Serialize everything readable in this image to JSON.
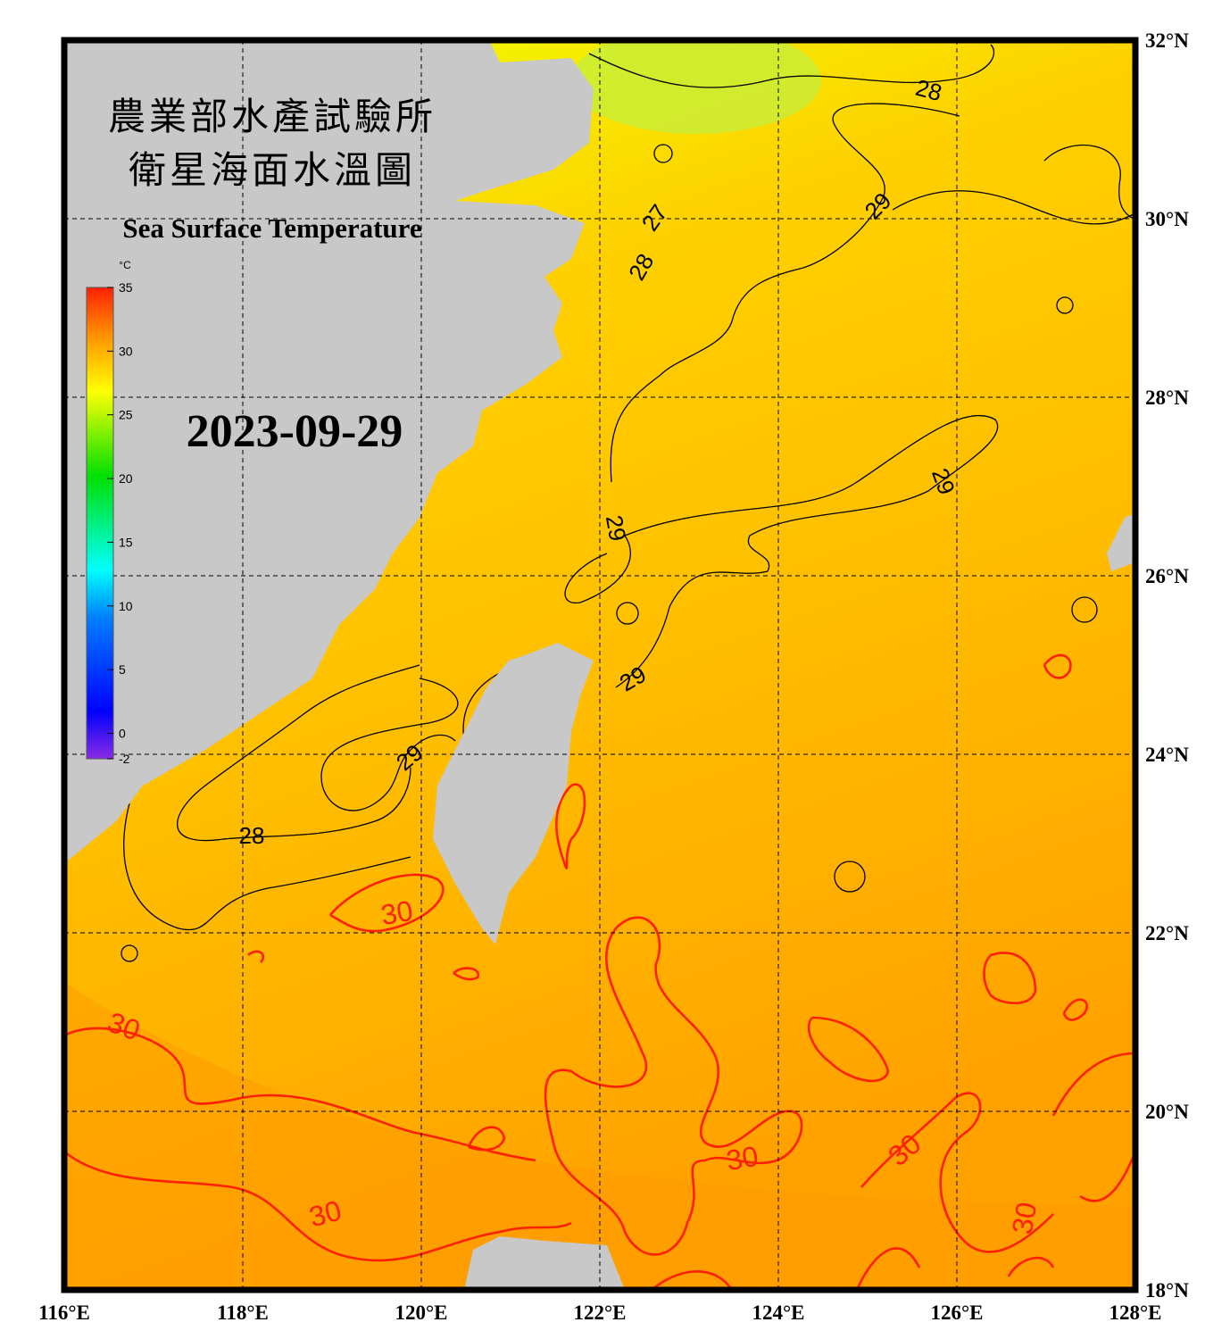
{
  "title_zh": "農業部水產試驗所",
  "title_zh2": "衛星海面水溫圖",
  "subtitle": "Sea Surface Temperature",
  "date": "2023-09-29",
  "colorbar": {
    "unit": "°C",
    "range": [
      -2,
      35
    ],
    "ticks": [
      35,
      30,
      25,
      20,
      15,
      10,
      5,
      0,
      -2
    ]
  },
  "lon_range": [
    116,
    128
  ],
  "lat_range": [
    18,
    32
  ],
  "lon_ticks": [
    {
      "value": 116,
      "label": "116°E"
    },
    {
      "value": 118,
      "label": "118°E"
    },
    {
      "value": 120,
      "label": "120°E"
    },
    {
      "value": 122,
      "label": "122°E"
    },
    {
      "value": 124,
      "label": "124°E"
    },
    {
      "value": 126,
      "label": "126°E"
    },
    {
      "value": 128,
      "label": "128°E"
    }
  ],
  "lat_ticks": [
    {
      "value": 32,
      "label": "32°N"
    },
    {
      "value": 30,
      "label": "30°N"
    },
    {
      "value": 28,
      "label": "28°N"
    },
    {
      "value": 26,
      "label": "26°N"
    },
    {
      "value": 24,
      "label": "24°N"
    },
    {
      "value": 22,
      "label": "22°N"
    },
    {
      "value": 20,
      "label": "20°N"
    },
    {
      "value": 18,
      "label": "18°N"
    }
  ],
  "contour_labels": [
    28,
    27,
    28,
    29,
    29,
    29,
    29,
    29,
    28,
    30,
    30,
    30,
    30,
    30,
    30
  ]
}
